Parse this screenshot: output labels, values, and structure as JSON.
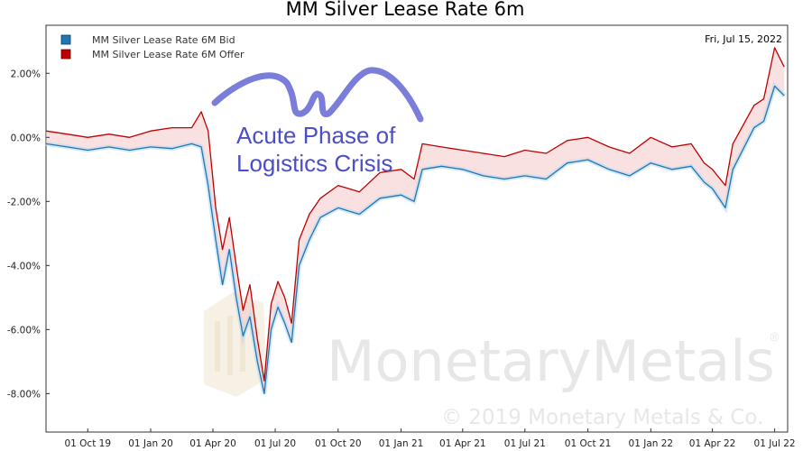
{
  "chart_data": {
    "type": "line",
    "title": "MM Silver Lease Rate 6m",
    "date_label": "Fri, Jul 15, 2022",
    "x_tick_labels": [
      "01 Oct 19",
      "01 Jan 20",
      "01 Apr 20",
      "01 Jul 20",
      "01 Oct 20",
      "01 Jan 21",
      "01 Apr 21",
      "01 Jul 21",
      "01 Oct 21",
      "01 Jan 22",
      "01 Apr 22",
      "01 Jul 22"
    ],
    "y_tick_labels": [
      "2.00%",
      "0.00%",
      "-2.00%",
      "-4.00%",
      "-6.00%",
      "-8.00%"
    ],
    "y_ticks": [
      2,
      0,
      -2,
      -4,
      -6,
      -8
    ],
    "ylim": [
      -9.2,
      3.5
    ],
    "xlim": [
      "2019-08-01",
      "2022-07-20"
    ],
    "grid": false,
    "legend_position": "top-left",
    "series": [
      {
        "name": "MM Silver Lease Rate 6M Bid",
        "color": "#1f77b4",
        "x": [
          "2019-08-01",
          "2019-09-01",
          "2019-10-01",
          "2019-11-01",
          "2019-12-01",
          "2020-01-01",
          "2020-02-01",
          "2020-03-01",
          "2020-03-15",
          "2020-03-25",
          "2020-04-05",
          "2020-04-15",
          "2020-04-25",
          "2020-05-05",
          "2020-05-15",
          "2020-05-25",
          "2020-06-05",
          "2020-06-15",
          "2020-06-25",
          "2020-07-05",
          "2020-07-15",
          "2020-07-25",
          "2020-08-05",
          "2020-08-20",
          "2020-09-05",
          "2020-10-01",
          "2020-11-01",
          "2020-12-01",
          "2021-01-01",
          "2021-01-20",
          "2021-02-01",
          "2021-03-01",
          "2021-04-01",
          "2021-05-01",
          "2021-06-01",
          "2021-07-01",
          "2021-08-01",
          "2021-09-01",
          "2021-10-01",
          "2021-11-01",
          "2021-12-01",
          "2022-01-01",
          "2022-02-01",
          "2022-03-01",
          "2022-03-20",
          "2022-04-01",
          "2022-04-20",
          "2022-05-01",
          "2022-06-01",
          "2022-06-15",
          "2022-07-01",
          "2022-07-15"
        ],
        "values": [
          -0.2,
          -0.3,
          -0.4,
          -0.3,
          -0.4,
          -0.3,
          -0.35,
          -0.2,
          -0.3,
          -1.5,
          -3.2,
          -4.6,
          -3.5,
          -5.0,
          -6.2,
          -5.6,
          -7.0,
          -8.0,
          -6.0,
          -5.3,
          -5.8,
          -6.4,
          -4.0,
          -3.2,
          -2.5,
          -2.2,
          -2.4,
          -1.9,
          -1.8,
          -2.0,
          -1.0,
          -0.9,
          -1.0,
          -1.2,
          -1.3,
          -1.2,
          -1.3,
          -0.8,
          -0.7,
          -1.0,
          -1.2,
          -0.8,
          -1.0,
          -0.9,
          -1.4,
          -1.6,
          -2.2,
          -1.0,
          0.3,
          0.5,
          1.6,
          1.3
        ]
      },
      {
        "name": "MM Silver Lease Rate 6M Offer",
        "color": "#c00000",
        "x": [
          "2019-08-01",
          "2019-09-01",
          "2019-10-01",
          "2019-11-01",
          "2019-12-01",
          "2020-01-01",
          "2020-02-01",
          "2020-03-01",
          "2020-03-15",
          "2020-03-25",
          "2020-04-05",
          "2020-04-15",
          "2020-04-25",
          "2020-05-05",
          "2020-05-15",
          "2020-05-25",
          "2020-06-05",
          "2020-06-15",
          "2020-06-25",
          "2020-07-05",
          "2020-07-15",
          "2020-07-25",
          "2020-08-05",
          "2020-08-20",
          "2020-09-05",
          "2020-10-01",
          "2020-11-01",
          "2020-12-01",
          "2021-01-01",
          "2021-01-20",
          "2021-02-01",
          "2021-03-01",
          "2021-04-01",
          "2021-05-01",
          "2021-06-01",
          "2021-07-01",
          "2021-08-01",
          "2021-09-01",
          "2021-10-01",
          "2021-11-01",
          "2021-12-01",
          "2022-01-01",
          "2022-02-01",
          "2022-03-01",
          "2022-03-20",
          "2022-04-01",
          "2022-04-20",
          "2022-05-01",
          "2022-06-01",
          "2022-06-15",
          "2022-07-01",
          "2022-07-15"
        ],
        "values": [
          0.2,
          0.1,
          0.0,
          0.1,
          0.0,
          0.2,
          0.3,
          0.3,
          0.8,
          0.2,
          -2.2,
          -3.5,
          -2.5,
          -4.0,
          -5.4,
          -4.6,
          -6.3,
          -7.6,
          -5.2,
          -4.5,
          -5.0,
          -5.8,
          -3.2,
          -2.4,
          -1.9,
          -1.5,
          -1.7,
          -1.1,
          -1.0,
          -1.3,
          -0.2,
          -0.3,
          -0.4,
          -0.5,
          -0.6,
          -0.4,
          -0.5,
          -0.1,
          0.0,
          -0.3,
          -0.5,
          0.0,
          -0.3,
          -0.2,
          -0.8,
          -1.0,
          -1.5,
          -0.2,
          1.0,
          1.2,
          2.8,
          2.2
        ]
      }
    ],
    "annotation": {
      "lines": [
        "Acute Phase of",
        "Logistics Crisis"
      ],
      "color": "#4b4fc6"
    },
    "watermark": {
      "brand": "MonetaryMetals",
      "registered": "®",
      "copyright": "© 2019 Monetary Metals & Co."
    }
  }
}
